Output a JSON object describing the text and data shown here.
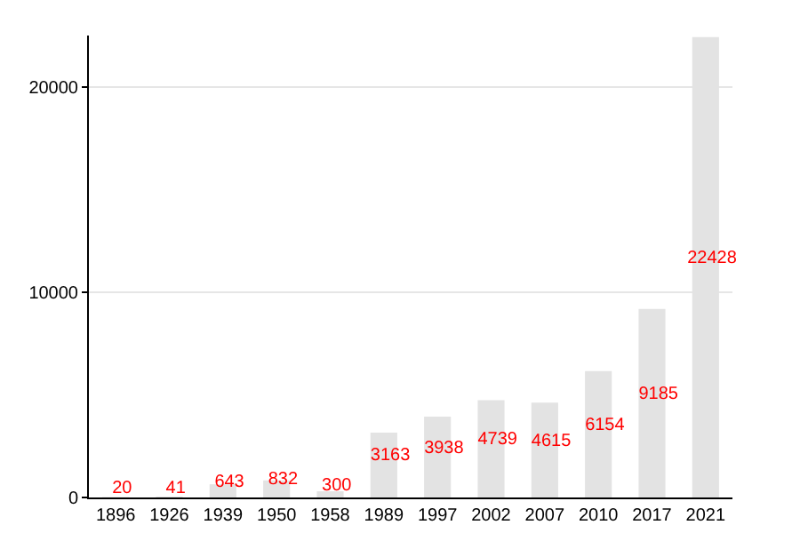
{
  "chart_data": {
    "type": "bar",
    "categories": [
      "1896",
      "1926",
      "1939",
      "1950",
      "1958",
      "1989",
      "1997",
      "2002",
      "2007",
      "2010",
      "2017",
      "2021"
    ],
    "values": [
      20,
      41,
      643,
      832,
      300,
      3163,
      3938,
      4739,
      4615,
      6154,
      9185,
      22428
    ],
    "color": "#e3e3e3",
    "data_labels": true,
    "ylim": [
      0,
      22500
    ],
    "yticks": [
      0,
      10000,
      20000
    ],
    "grid": "y"
  }
}
